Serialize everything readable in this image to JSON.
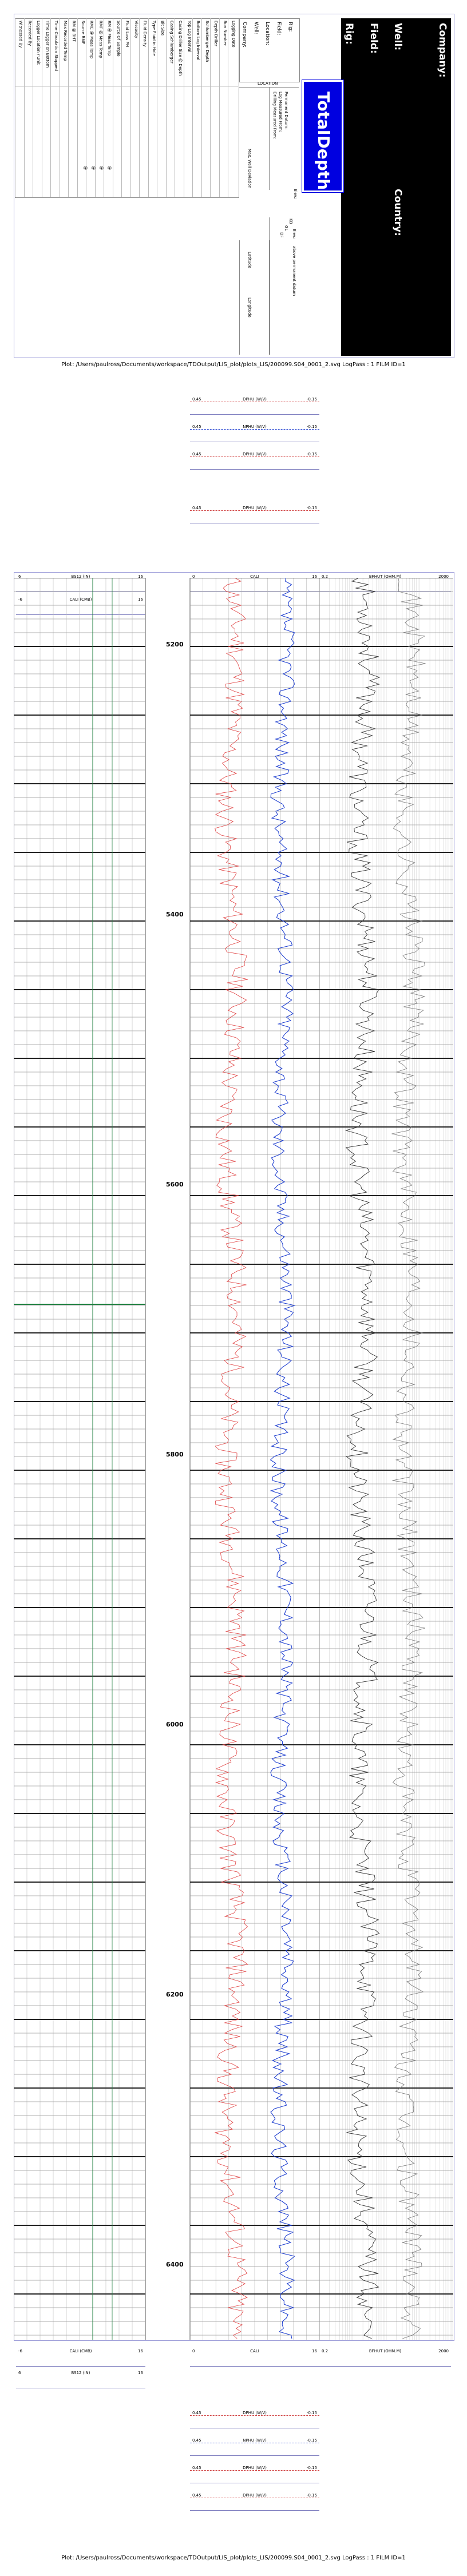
{
  "header": {
    "company_label": "Company:",
    "well_label": "Well:",
    "field_label": "Field:",
    "rig_label": "Rig:",
    "country_label": "Country:",
    "brand": "TotalDepth",
    "info_fields": [
      "Rig:",
      "Field:",
      "Location:",
      "Well:",
      "Company:"
    ],
    "location_label": "LOCATION",
    "elev_labels": [
      "Elev.:",
      "KB",
      "GL",
      "DF"
    ],
    "perm_labels": [
      "Permanent Datum:",
      "Log Measured From:",
      "Drilling Measured From:"
    ],
    "elev_of": "Elev.:",
    "above_label": "above permanent datum",
    "max_well_dev": "Max. Well Deviation",
    "latitude": "Latitude",
    "longitude": "Longitude",
    "table_rows": [
      "Logging Date",
      "Run Number",
      "Depth Driller",
      "Schlumberger Depth",
      "Bottom Log Interval",
      "Top Log Interval",
      "Casing Driller Size @ Depth",
      "Casing Schlumberger",
      "Bit Size",
      "Type Fluid in Hole",
      "Fluid Density",
      "Viscosity",
      "Fluid Loss PH",
      "Source Of Sample",
      "RM @ Meas Temp",
      "RMF @ Meas Temp",
      "RMC @ Meas Temp",
      "Source RMF",
      "RM @ BHT",
      "Max Recorded Temp",
      "Time Circulation Stopped",
      "Time Logger on Bottom",
      "Logger Location / Unit",
      "Recorded By",
      "Witnessed By"
    ],
    "at_marks": [
      "@",
      "@",
      "@",
      "@"
    ]
  },
  "plot_caption": "Plot: /Users/paulross/Documents/workspace/TDOutput/LIS_plot/plots_LIS/200099.S04_0001_2.svg LogPass : 1 FILM ID=1",
  "top_scales": [
    {
      "name": "DPHU (W/V)",
      "lo": "0.45",
      "hi": "-0.15",
      "color": "#d04040"
    },
    {
      "name": "NPHU (W/V)",
      "lo": "0.45",
      "hi": "-0.15",
      "color": "#2040d0"
    },
    {
      "name": "DPHU (W/V)",
      "lo": "0.45",
      "hi": "-0.15",
      "color": "#d04040"
    },
    {
      "name": "DPHU (W/V)",
      "lo": "0.45",
      "hi": "-0.15",
      "color": "#d04040"
    }
  ],
  "track_scales": {
    "left": {
      "name": "BS12 (IN)",
      "lo": "6",
      "hi": "16"
    },
    "left2": {
      "name": "CALI (CMB)",
      "lo": "-6",
      "hi": "16"
    },
    "mid_lo": "0",
    "mid_hi": "16",
    "mid_name": "CALI",
    "right": {
      "name": "BFHUT (OHM.M)",
      "lo": "0.2",
      "hi": "2000"
    },
    "right2": {
      "name": "BFHUT (OHM.M)",
      "lo": "0.2",
      "hi": "2000"
    }
  },
  "depths": [
    "5200",
    "5400",
    "5600",
    "5800",
    "6000",
    "6200",
    "6400"
  ],
  "colors": {
    "accent_blue": "#0000e0",
    "curve_red": "#e04040",
    "curve_blue": "#2040d0",
    "curve_green": "#208040",
    "frame": "#9a9ad8"
  }
}
